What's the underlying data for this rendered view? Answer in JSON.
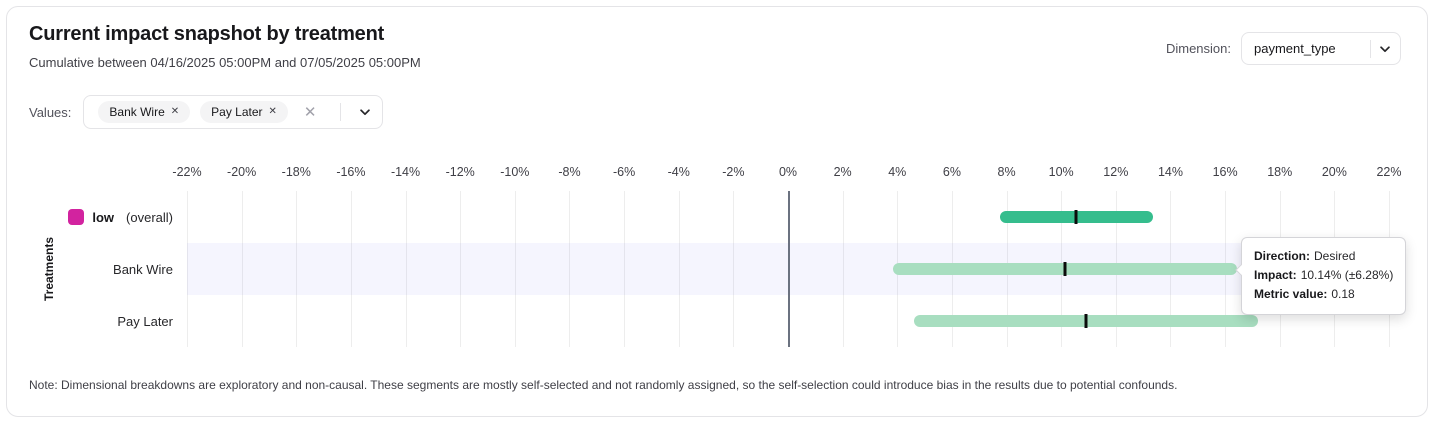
{
  "header": {
    "title": "Current impact snapshot by treatment",
    "subtitle": "Cumulative between 04/16/2025 05:00PM and 07/05/2025 05:00PM",
    "dimension_label": "Dimension:",
    "dimension_value": "payment_type"
  },
  "filters": {
    "values_label": "Values:",
    "chips": [
      {
        "label": "Bank Wire"
      },
      {
        "label": "Pay Later"
      }
    ]
  },
  "icons": {
    "close": "✕"
  },
  "chart_data": {
    "type": "bar",
    "orientation": "horizontal",
    "title": "Current impact snapshot by treatment",
    "ylabel": "Treatments",
    "xlim": [
      -22,
      22
    ],
    "x_ticks": [
      -22,
      -20,
      -18,
      -16,
      -14,
      -12,
      -10,
      -8,
      -6,
      -4,
      -2,
      0,
      2,
      4,
      6,
      8,
      10,
      12,
      14,
      16,
      18,
      20,
      22
    ],
    "x_tick_format": "percent",
    "grid": "vertical",
    "zero_line": true,
    "highlight_color": "#f1f1fb",
    "rows": [
      {
        "label": "low",
        "label_suffix": "(overall)",
        "legend_color": "#d2239f",
        "impact_pct": 10.55,
        "margin_pct": 2.8,
        "bar_color": "#35bd8d",
        "highlight": false
      },
      {
        "label": "Bank Wire",
        "impact_pct": 10.14,
        "margin_pct": 6.28,
        "bar_color": "#a8dec0",
        "highlight": true
      },
      {
        "label": "Pay Later",
        "impact_pct": 10.9,
        "margin_pct": 6.3,
        "bar_color": "#a8dec0",
        "highlight": false
      }
    ]
  },
  "tooltip": {
    "direction_label": "Direction:",
    "direction_value": "Desired",
    "impact_label": "Impact:",
    "impact_value": "10.14% (±6.28%)",
    "metric_label": "Metric value:",
    "metric_value": "0.18"
  },
  "note": "Note: Dimensional breakdowns are exploratory and non-causal. These segments are mostly self-selected and not randomly assigned, so the self-selection could introduce bias in the results due to potential confounds."
}
